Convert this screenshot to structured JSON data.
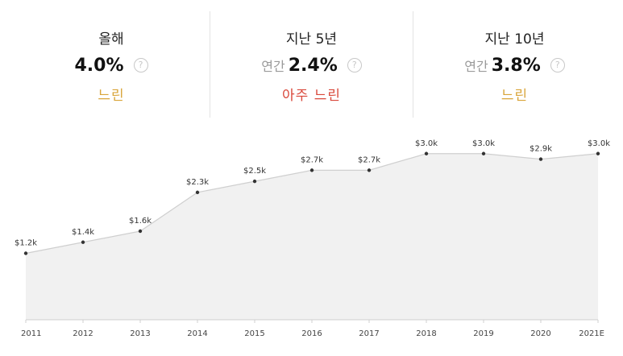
{
  "stats": [
    {
      "title": "올해",
      "prefix": "",
      "value": "4.0%",
      "label": "느린",
      "label_color": "#d9a53a"
    },
    {
      "title": "지난 5년",
      "prefix": "연간",
      "value": "2.4%",
      "label": "아주 느린",
      "label_color": "#d9483b"
    },
    {
      "title": "지난 10년",
      "prefix": "연간",
      "value": "3.8%",
      "label": "느린",
      "label_color": "#d9a53a"
    }
  ],
  "help_icon": "question-circle-icon",
  "chart_data": {
    "type": "area",
    "categories": [
      "2011",
      "2012",
      "2013",
      "2014",
      "2015",
      "2016",
      "2017",
      "2018",
      "2019",
      "2020",
      "2021E"
    ],
    "values": [
      1.2,
      1.4,
      1.6,
      2.3,
      2.5,
      2.7,
      2.7,
      3.0,
      3.0,
      2.9,
      3.0
    ],
    "data_labels": [
      "$1.2k",
      "$1.4k",
      "$1.6k",
      "$2.3k",
      "$2.5k",
      "$2.7k",
      "$2.7k",
      "$3.0k",
      "$3.0k",
      "$2.9k",
      "$3.0k"
    ],
    "unit": "thousands USD",
    "ylim": [
      0,
      3.2
    ],
    "grid": false,
    "fill_color": "#f1f1f1",
    "line_color": "#cfcfcf",
    "point_color": "#333333"
  }
}
